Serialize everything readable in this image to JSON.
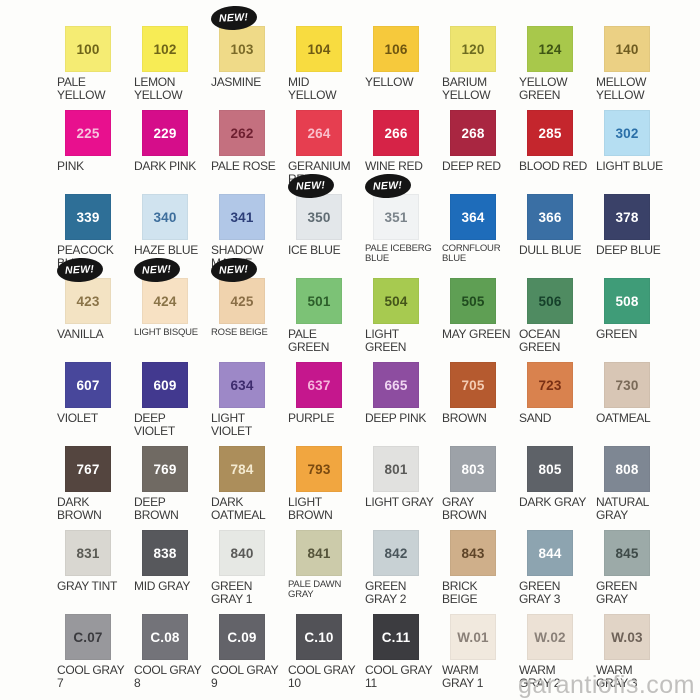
{
  "page": {
    "watermark": "garantiofis.com"
  },
  "badge": {
    "label": "NEW!",
    "bg": "#151515",
    "fg": "#FFFFFF"
  },
  "chart_data": {
    "type": "table",
    "columns": 8,
    "rows": 8,
    "swatches": [
      {
        "code": "100",
        "name": "PALE YELLOW",
        "color": "#F5EC73",
        "num_color": "#6E6418"
      },
      {
        "code": "102",
        "name": "LEMON YELLOW",
        "color": "#F7EC55",
        "num_color": "#6E6418"
      },
      {
        "code": "103",
        "name": "JASMINE",
        "color": "#EFDA88",
        "num_color": "#7A6A28",
        "new": true
      },
      {
        "code": "104",
        "name": "MID YELLOW",
        "color": "#F8DC40",
        "num_color": "#6E5A14"
      },
      {
        "code": "106",
        "name": "YELLOW",
        "color": "#F6C93C",
        "num_color": "#6E5510"
      },
      {
        "code": "120",
        "name": "BARIUM YELLOW",
        "color": "#EDE470",
        "num_color": "#6E6C20"
      },
      {
        "code": "124",
        "name": "YELLOW GREEN",
        "color": "#A8C84B",
        "num_color": "#3E5514"
      },
      {
        "code": "140",
        "name": "MELLOW YELLOW",
        "color": "#EBD084",
        "num_color": "#6E5B20"
      },
      {
        "code": "225",
        "name": "PINK",
        "color": "#E8108E",
        "num_color": "#F6C3DE"
      },
      {
        "code": "229",
        "name": "DARK PINK",
        "color": "#D50D8A",
        "num_color": "#FFFFFF"
      },
      {
        "code": "262",
        "name": "PALE ROSE",
        "color": "#C4707F",
        "num_color": "#6E1F30"
      },
      {
        "code": "264",
        "name": "GERANIUM RED",
        "color": "#E63E50",
        "num_color": "#F9BFCB"
      },
      {
        "code": "266",
        "name": "WINE RED",
        "color": "#D62347",
        "num_color": "#FFFFFF"
      },
      {
        "code": "268",
        "name": "DEEP RED",
        "color": "#A92641",
        "num_color": "#FFFFFF"
      },
      {
        "code": "285",
        "name": "BLOOD RED",
        "color": "#C4262D",
        "num_color": "#FFFFFF"
      },
      {
        "code": "302",
        "name": "LIGHT BLUE",
        "color": "#B5DEF2",
        "num_color": "#2A6FA8"
      },
      {
        "code": "339",
        "name": "PEACOCK BLUE",
        "color": "#2E6F97",
        "num_color": "#FFFFFF"
      },
      {
        "code": "340",
        "name": "HAZE BLUE",
        "color": "#D0E3EF",
        "num_color": "#3D6E9C"
      },
      {
        "code": "341",
        "name": "SHADOW MAUVE",
        "color": "#B1C7E7",
        "num_color": "#2C3E78"
      },
      {
        "code": "350",
        "name": "ICE BLUE",
        "color": "#E3E7EA",
        "num_color": "#5F6B72",
        "new": true
      },
      {
        "code": "351",
        "name": "PALE ICEBERG BLUE",
        "color": "#F1F3F4",
        "num_color": "#7A838A",
        "new": true,
        "small": true
      },
      {
        "code": "364",
        "name": "CORNFLOUR BLUE",
        "color": "#1E6CBA",
        "num_color": "#FFFFFF",
        "small": true
      },
      {
        "code": "366",
        "name": "DULL BLUE",
        "color": "#3A6FA4",
        "num_color": "#FFFFFF"
      },
      {
        "code": "378",
        "name": "DEEP BLUE",
        "color": "#3A4168",
        "num_color": "#FFFFFF"
      },
      {
        "code": "423",
        "name": "VANILLA",
        "color": "#F3E3C3",
        "num_color": "#8A7448",
        "new": true
      },
      {
        "code": "424",
        "name": "LIGHT BISQUE",
        "color": "#F7E1C3",
        "num_color": "#8A7448",
        "new": true,
        "small": true
      },
      {
        "code": "425",
        "name": "ROSE BEIGE",
        "color": "#F0D3AE",
        "num_color": "#8A6E46",
        "new": true,
        "small": true
      },
      {
        "code": "501",
        "name": "PALE GREEN",
        "color": "#7CC276",
        "num_color": "#2C5E2A"
      },
      {
        "code": "504",
        "name": "LIGHT GREEN",
        "color": "#A7CA50",
        "num_color": "#44551A"
      },
      {
        "code": "505",
        "name": "MAY GREEN",
        "color": "#5F9F54",
        "num_color": "#1F4A1E"
      },
      {
        "code": "506",
        "name": "OCEAN GREEN",
        "color": "#4F8B61",
        "num_color": "#15402A"
      },
      {
        "code": "508",
        "name": "GREEN",
        "color": "#3F9C78",
        "num_color": "#FFFFFF"
      },
      {
        "code": "607",
        "name": "VIOLET",
        "color": "#48479B",
        "num_color": "#FFFFFF"
      },
      {
        "code": "609",
        "name": "DEEP VIOLET",
        "color": "#42398F",
        "num_color": "#FFFFFF"
      },
      {
        "code": "634",
        "name": "LIGHT VIOLET",
        "color": "#9D88C7",
        "num_color": "#3E2C6E"
      },
      {
        "code": "637",
        "name": "PURPLE",
        "color": "#C5178D",
        "num_color": "#F6B6DC"
      },
      {
        "code": "665",
        "name": "DEEP PINK",
        "color": "#8D4DA0",
        "num_color": "#F0D6F2"
      },
      {
        "code": "705",
        "name": "BROWN",
        "color": "#B55A2F",
        "num_color": "#F4CDB4"
      },
      {
        "code": "723",
        "name": "SAND",
        "color": "#D9824E",
        "num_color": "#7A3014"
      },
      {
        "code": "730",
        "name": "OATMEAL",
        "color": "#D8C6B5",
        "num_color": "#7A6A58"
      },
      {
        "code": "767",
        "name": "DARK BROWN",
        "color": "#54453F",
        "num_color": "#FFFFFF"
      },
      {
        "code": "769",
        "name": "DEEP BROWN",
        "color": "#706A63",
        "num_color": "#FFFFFF"
      },
      {
        "code": "784",
        "name": "DARK OATMEAL",
        "color": "#AC8E5B",
        "num_color": "#F4EAD0"
      },
      {
        "code": "793",
        "name": "LIGHT BROWN",
        "color": "#F1A640",
        "num_color": "#7A4A10"
      },
      {
        "code": "801",
        "name": "LIGHT GRAY",
        "color": "#E1E1DF",
        "num_color": "#5A5A58"
      },
      {
        "code": "803",
        "name": "GRAY BROWN",
        "color": "#9DA2A8",
        "num_color": "#FFFFFF"
      },
      {
        "code": "805",
        "name": "DARK GRAY",
        "color": "#5E6268",
        "num_color": "#FFFFFF"
      },
      {
        "code": "808",
        "name": "NATURAL GRAY",
        "color": "#7E8793",
        "num_color": "#FFFFFF"
      },
      {
        "code": "831",
        "name": "GRAY TINT",
        "color": "#D9D7D1",
        "num_color": "#5A5A54"
      },
      {
        "code": "838",
        "name": "MID GRAY",
        "color": "#57585C",
        "num_color": "#FFFFFF"
      },
      {
        "code": "840",
        "name": "GREEN GRAY 1",
        "color": "#E6E8E4",
        "num_color": "#5A5A58"
      },
      {
        "code": "841",
        "name": "PALE DAWN GRAY",
        "color": "#CCCBAA",
        "num_color": "#55543A",
        "small": true
      },
      {
        "code": "842",
        "name": "GREEN GRAY 2",
        "color": "#C8D1D4",
        "num_color": "#4A565C"
      },
      {
        "code": "843",
        "name": "BRICK BEIGE",
        "color": "#CFAF8A",
        "num_color": "#5E4428"
      },
      {
        "code": "844",
        "name": "GREEN GRAY 3",
        "color": "#8DA4B0",
        "num_color": "#FFFFFF"
      },
      {
        "code": "845",
        "name": "GREEN GRAY",
        "color": "#9CAAA8",
        "num_color": "#3E4A48"
      },
      {
        "code": "C.07",
        "name": "COOL GRAY 7",
        "color": "#98989C",
        "num_color": "#3A3A3E"
      },
      {
        "code": "C.08",
        "name": "COOL GRAY 8",
        "color": "#737379",
        "num_color": "#FFFFFF"
      },
      {
        "code": "C.09",
        "name": "COOL GRAY 9",
        "color": "#636369",
        "num_color": "#FFFFFF"
      },
      {
        "code": "C.10",
        "name": "COOL GRAY 10",
        "color": "#525257",
        "num_color": "#FFFFFF"
      },
      {
        "code": "C.11",
        "name": "COOL GRAY 11",
        "color": "#3C3C40",
        "num_color": "#FFFFFF"
      },
      {
        "code": "W.01",
        "name": "WARM GRAY 1",
        "color": "#F1E9DE",
        "num_color": "#8A8078"
      },
      {
        "code": "W.02",
        "name": "WARM GRAY 2",
        "color": "#ECE1D5",
        "num_color": "#8A8078"
      },
      {
        "code": "W.03",
        "name": "WARM GRAY 3",
        "color": "#E1D4C6",
        "num_color": "#6E6258"
      }
    ]
  }
}
